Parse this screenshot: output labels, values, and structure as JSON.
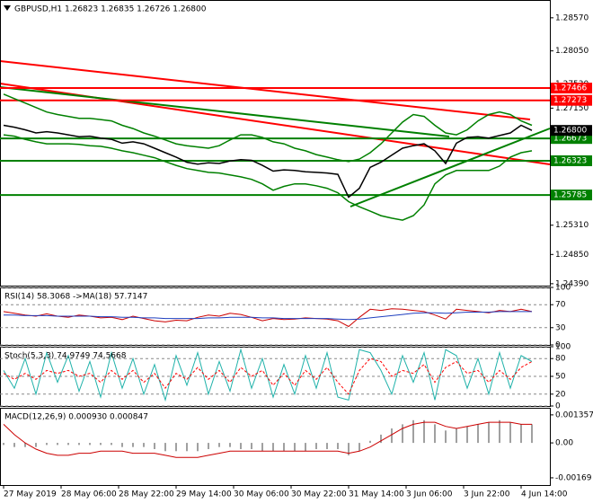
{
  "chart_data": [
    {
      "type": "line",
      "title": "GBPUSD,H1  1.26823 1.26835 1.26726 1.26800",
      "x": [
        0,
        3,
        6,
        9,
        12,
        15,
        18,
        21,
        24,
        27,
        30,
        33,
        36,
        39,
        42,
        45,
        48,
        51,
        54,
        57,
        60,
        63,
        66,
        69,
        72,
        75,
        78,
        81,
        84,
        87,
        90,
        93,
        96,
        99,
        102,
        105,
        108,
        111,
        114,
        117,
        120,
        123,
        126,
        129,
        132,
        135,
        138,
        141,
        144,
        147
      ],
      "xlim": [
        -1,
        152
      ],
      "ylim": [
        1.2436,
        1.2885
      ],
      "yticks": [
        {
          "value": 1.2857,
          "label": "1.28570"
        },
        {
          "value": 1.2805,
          "label": "1.28050"
        },
        {
          "value": 1.2753,
          "label": "1.27530"
        },
        {
          "value": 1.2715,
          "label": "1.27150"
        },
        {
          "value": 1.2531,
          "label": "1.25310"
        },
        {
          "value": 1.2485,
          "label": "1.24850"
        },
        {
          "value": 1.2439,
          "label": "1.24390"
        }
      ],
      "series": [
        {
          "color": "#000000",
          "values": [
            1.2688,
            1.2685,
            1.2681,
            1.2676,
            1.2678,
            1.2676,
            1.2673,
            1.267,
            1.2671,
            1.2668,
            1.2666,
            1.266,
            1.2662,
            1.2659,
            1.2652,
            1.2645,
            1.2638,
            1.263,
            1.2627,
            1.2629,
            1.2628,
            1.2632,
            1.2634,
            1.2633,
            1.2625,
            1.2616,
            1.2618,
            1.2617,
            1.2615,
            1.2614,
            1.2613,
            1.2611,
            1.2575,
            1.2589,
            1.2622,
            1.263,
            1.2641,
            1.2652,
            1.2656,
            1.2659,
            1.2648,
            1.2628,
            1.266,
            1.2669,
            1.267,
            1.2668,
            1.2672,
            1.2676,
            1.2688,
            1.268
          ]
        },
        {
          "color": "#008000",
          "values": [
            1.2737,
            1.273,
            1.2723,
            1.2716,
            1.2709,
            1.2705,
            1.2702,
            1.2699,
            1.2699,
            1.2697,
            1.2695,
            1.2688,
            1.2683,
            1.2676,
            1.2671,
            1.2665,
            1.2659,
            1.2656,
            1.2654,
            1.2652,
            1.2656,
            1.2665,
            1.2673,
            1.2673,
            1.2669,
            1.2662,
            1.2659,
            1.2652,
            1.2648,
            1.2642,
            1.2638,
            1.2634,
            1.2631,
            1.2635,
            1.2645,
            1.2659,
            1.2676,
            1.2693,
            1.2705,
            1.2702,
            1.2688,
            1.2676,
            1.2673,
            1.2681,
            1.2695,
            1.2705,
            1.2709,
            1.2705,
            1.2695,
            1.2688
          ]
        },
        {
          "color": "#008000",
          "values": [
            1.2673,
            1.2671,
            1.2666,
            1.2662,
            1.2659,
            1.2659,
            1.2659,
            1.2658,
            1.2656,
            1.2655,
            1.2652,
            1.2648,
            1.2645,
            1.2641,
            1.2637,
            1.2631,
            1.2625,
            1.262,
            1.2617,
            1.2614,
            1.2613,
            1.261,
            1.2607,
            1.2603,
            1.2596,
            1.2586,
            1.2592,
            1.2596,
            1.2596,
            1.2593,
            1.2589,
            1.2582,
            1.2568,
            1.256,
            1.2553,
            1.2546,
            1.2542,
            1.2539,
            1.2546,
            1.2563,
            1.2596,
            1.261,
            1.2617,
            1.2617,
            1.2617,
            1.2617,
            1.2624,
            1.2638,
            1.2645,
            1.2648
          ]
        }
      ],
      "levels": [
        {
          "value": 1.27466,
          "label": "1.27466",
          "color": "#ff0000"
        },
        {
          "value": 1.27273,
          "label": "1.27273",
          "color": "#ff0000"
        },
        {
          "value": 1.26673,
          "label": "1.26673",
          "color": "#008000"
        },
        {
          "value": 1.26323,
          "label": "1.26323",
          "color": "#008000"
        },
        {
          "value": 1.25785,
          "label": "1.25785",
          "color": "#008000"
        }
      ],
      "last_price": {
        "value": 1.268,
        "label": "1.26800"
      }
    },
    {
      "type": "line",
      "title": "RSI(14) 58.3068  ->MA(18) 57.7147",
      "x": [
        0,
        3,
        6,
        9,
        12,
        15,
        18,
        21,
        24,
        27,
        30,
        33,
        36,
        39,
        42,
        45,
        48,
        51,
        54,
        57,
        60,
        63,
        66,
        69,
        72,
        75,
        78,
        81,
        84,
        87,
        90,
        93,
        96,
        99,
        102,
        105,
        108,
        111,
        114,
        117,
        120,
        123,
        126,
        129,
        132,
        135,
        138,
        141,
        144,
        147
      ],
      "xlim": [
        -1,
        152
      ],
      "ylim": [
        0,
        100
      ],
      "yticks": [
        100,
        70,
        30,
        0
      ],
      "grid": true,
      "series": [
        {
          "color": "#cc0000",
          "values": [
            58,
            55,
            52,
            50,
            54,
            50,
            48,
            52,
            50,
            47,
            48,
            44,
            50,
            46,
            42,
            40,
            43,
            42,
            48,
            52,
            50,
            55,
            53,
            48,
            42,
            46,
            44,
            45,
            47,
            46,
            45,
            42,
            32,
            48,
            62,
            60,
            63,
            62,
            60,
            58,
            52,
            45,
            62,
            60,
            58,
            56,
            60,
            58,
            62,
            58
          ]
        },
        {
          "color": "#1f3fbf",
          "values": [
            52,
            52,
            51,
            51,
            51,
            50,
            50,
            50,
            50,
            49,
            49,
            48,
            48,
            47,
            47,
            46,
            46,
            46,
            46,
            47,
            47,
            48,
            48,
            48,
            47,
            47,
            46,
            46,
            46,
            46,
            46,
            45,
            44,
            45,
            47,
            49,
            51,
            53,
            55,
            56,
            56,
            55,
            56,
            57,
            57,
            57,
            58,
            58,
            58,
            58
          ]
        }
      ]
    },
    {
      "type": "line",
      "title": "Stoch(5,3,3) 74.9749 74.5668",
      "x": [
        0,
        3,
        6,
        9,
        12,
        15,
        18,
        21,
        24,
        27,
        30,
        33,
        36,
        39,
        42,
        45,
        48,
        51,
        54,
        57,
        60,
        63,
        66,
        69,
        72,
        75,
        78,
        81,
        84,
        87,
        90,
        93,
        96,
        99,
        102,
        105,
        108,
        111,
        114,
        117,
        120,
        123,
        126,
        129,
        132,
        135,
        138,
        141,
        144,
        147
      ],
      "xlim": [
        -1,
        152
      ],
      "ylim": [
        0,
        100
      ],
      "yticks": [
        100,
        80,
        50,
        20,
        0
      ],
      "grid": true,
      "series": [
        {
          "color": "#20b2aa",
          "values": [
            60,
            30,
            80,
            20,
            90,
            40,
            85,
            25,
            75,
            15,
            90,
            30,
            80,
            20,
            70,
            10,
            85,
            35,
            90,
            20,
            75,
            25,
            95,
            30,
            80,
            15,
            70,
            20,
            85,
            30,
            90,
            15,
            10,
            95,
            90,
            60,
            20,
            85,
            40,
            90,
            10,
            95,
            85,
            30,
            80,
            20,
            90,
            30,
            85,
            75
          ]
        },
        {
          "color": "#ff0000",
          "dashed": true,
          "values": [
            55,
            45,
            55,
            45,
            60,
            55,
            60,
            50,
            55,
            40,
            60,
            45,
            60,
            40,
            55,
            30,
            55,
            45,
            65,
            45,
            60,
            40,
            65,
            50,
            60,
            35,
            55,
            35,
            60,
            45,
            65,
            40,
            20,
            60,
            80,
            75,
            50,
            60,
            55,
            70,
            40,
            65,
            75,
            55,
            60,
            40,
            60,
            45,
            65,
            75
          ]
        }
      ]
    },
    {
      "type": "line",
      "title": "MACD(12,26,9) 0.000930 0.000847",
      "x": [
        0,
        3,
        6,
        9,
        12,
        15,
        18,
        21,
        24,
        27,
        30,
        33,
        36,
        39,
        42,
        45,
        48,
        51,
        54,
        57,
        60,
        63,
        66,
        69,
        72,
        75,
        78,
        81,
        84,
        87,
        90,
        93,
        96,
        99,
        102,
        105,
        108,
        111,
        114,
        117,
        120,
        123,
        126,
        129,
        132,
        135,
        138,
        141,
        144,
        147
      ],
      "xlim": [
        -1,
        152
      ],
      "ylim": [
        -0.00204,
        0.0017
      ],
      "yticks": [
        0.001357,
        {
          "value": 0,
          "label": "0.00"
        },
        -0.00169
      ],
      "xticks": [
        {
          "value": 0,
          "label": "27 May 2019"
        },
        {
          "value": 16,
          "label": "28 May 06:00"
        },
        {
          "value": 32,
          "label": "28 May 22:00"
        },
        {
          "value": 48,
          "label": "29 May 14:00"
        },
        {
          "value": 64,
          "label": "30 May 06:00"
        },
        {
          "value": 80,
          "label": "30 May 22:00"
        },
        {
          "value": 96,
          "label": "31 May 14:00"
        },
        {
          "value": 112,
          "label": "3 Jun 06:00"
        },
        {
          "value": 128,
          "label": "3 Jun 22:00"
        },
        {
          "value": 144,
          "label": "4 Jun 14:00"
        }
      ],
      "series": [
        {
          "type": "bar",
          "color": "#a0a0a0",
          "values": [
            -0.0001,
            -0.0002,
            -0.0002,
            -0.0002,
            -0.0001,
            -0.0001,
            -0.0001,
            -0.0001,
            -0.0001,
            -0.0001,
            -0.0001,
            -0.0002,
            -0.0002,
            -0.0002,
            -0.0003,
            -0.0004,
            -0.0004,
            -0.0004,
            -0.0004,
            -0.0003,
            -0.0002,
            -0.0002,
            -0.0003,
            -0.0003,
            -0.0004,
            -0.0004,
            -0.0004,
            -0.0004,
            -0.0004,
            -0.0003,
            -0.0003,
            -0.0003,
            -0.0006,
            -0.0004,
            0.0001,
            0.0004,
            0.0007,
            0.0009,
            0.0011,
            0.0011,
            0.0009,
            0.0006,
            0.0007,
            0.0008,
            0.0009,
            0.001,
            0.0011,
            0.001,
            0.0009,
            0.0009
          ]
        },
        {
          "type": "line",
          "color": "#cc0000",
          "values": [
            0.0009,
            0.0004,
            0,
            -0.0003,
            -0.0005,
            -0.0006,
            -0.0006,
            -0.0005,
            -0.0005,
            -0.0004,
            -0.0004,
            -0.0004,
            -0.0005,
            -0.0005,
            -0.0005,
            -0.0006,
            -0.0007,
            -0.0007,
            -0.0007,
            -0.0006,
            -0.0005,
            -0.0004,
            -0.0004,
            -0.0004,
            -0.0004,
            -0.0004,
            -0.0004,
            -0.0004,
            -0.0004,
            -0.0004,
            -0.0004,
            -0.0004,
            -0.0005,
            -0.0004,
            -0.0002,
            0.0001,
            0.0004,
            0.0007,
            0.0009,
            0.001,
            0.001,
            0.0008,
            0.0007,
            0.0008,
            0.0009,
            0.001,
            0.001,
            0.001,
            0.0009,
            0.0009
          ]
        }
      ]
    }
  ]
}
